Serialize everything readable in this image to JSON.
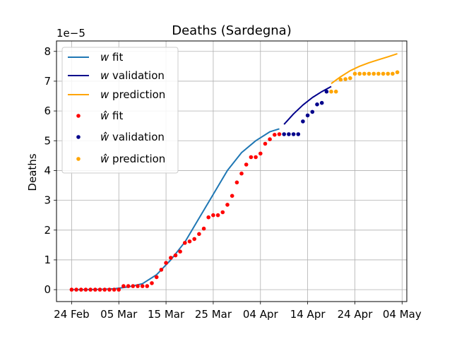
{
  "chart_data": {
    "type": "line",
    "title": "Deaths  (Sardegna)",
    "xlabel": "",
    "ylabel": "Deaths",
    "y_offset_label": "1e−5",
    "y_scale_factor": 1e-05,
    "x_tick_labels": [
      "24 Feb",
      "05 Mar",
      "15 Mar",
      "25 Mar",
      "04 Apr",
      "14 Apr",
      "24 Apr",
      "04 May"
    ],
    "x_tick_days": [
      0,
      10,
      20,
      30,
      40,
      50,
      60,
      70
    ],
    "y_tick_labels": [
      "0",
      "1",
      "2",
      "3",
      "4",
      "5",
      "6",
      "7",
      "8"
    ],
    "y_ticks": [
      0,
      1,
      2,
      3,
      4,
      5,
      6,
      7,
      8
    ],
    "xlim_days": [
      -3.2,
      71
    ],
    "ylim": [
      -0.4,
      8.35
    ],
    "grid": true,
    "legend_position": "upper-left",
    "colors": {
      "fit": "#1f77b4",
      "validation": "#00008b",
      "prediction": "#ffa500",
      "fit_points": "#ff0000"
    },
    "legend": {
      "w_fit": "w fit",
      "w_validation": "w validation",
      "w_prediction": "w prediction",
      "what_fit": "ŵ fit",
      "what_validation": "ŵ validation",
      "what_prediction": "ŵ prediction"
    },
    "series": [
      {
        "name": "w fit",
        "kind": "line",
        "x_days": [
          0,
          3,
          6,
          9,
          12,
          15,
          18,
          21,
          24,
          27,
          30,
          33,
          36,
          39,
          42,
          44
        ],
        "values": [
          0.0,
          0.0,
          0.01,
          0.03,
          0.09,
          0.2,
          0.5,
          1.0,
          1.6,
          2.4,
          3.2,
          4.0,
          4.6,
          5.0,
          5.3,
          5.4
        ]
      },
      {
        "name": "w validation",
        "kind": "line",
        "x_days": [
          45,
          47,
          49,
          51,
          53,
          55
        ],
        "values": [
          5.55,
          5.9,
          6.2,
          6.45,
          6.65,
          6.82
        ]
      },
      {
        "name": "w prediction",
        "kind": "line",
        "x_days": [
          55,
          57,
          59,
          61,
          63,
          65,
          67,
          69
        ],
        "values": [
          6.92,
          7.15,
          7.35,
          7.5,
          7.62,
          7.72,
          7.82,
          7.92
        ]
      },
      {
        "name": "ŵ fit",
        "kind": "scatter",
        "x_days": [
          0,
          1,
          2,
          3,
          4,
          5,
          6,
          7,
          8,
          9,
          10,
          11,
          12,
          13,
          14,
          15,
          16,
          17,
          18,
          19,
          20,
          21,
          22,
          23,
          24,
          25,
          26,
          27,
          28,
          29,
          30,
          31,
          32,
          33,
          34,
          35,
          36,
          37,
          38,
          39,
          40,
          41,
          42,
          43,
          44
        ],
        "values": [
          0,
          0,
          0,
          0,
          0,
          0,
          0,
          0,
          0,
          0,
          0,
          0.12,
          0.12,
          0.12,
          0.12,
          0.12,
          0.12,
          0.22,
          0.42,
          0.67,
          0.9,
          1.07,
          1.15,
          1.28,
          1.57,
          1.62,
          1.7,
          1.87,
          2.05,
          2.43,
          2.5,
          2.5,
          2.6,
          2.85,
          3.15,
          3.6,
          3.9,
          4.2,
          4.45,
          4.45,
          4.57,
          4.9,
          5.05,
          5.2,
          5.22
        ]
      },
      {
        "name": "ŵ validation",
        "kind": "scatter",
        "x_days": [
          45,
          46,
          47,
          48,
          49,
          50,
          51,
          52,
          53,
          54
        ],
        "values": [
          5.22,
          5.22,
          5.22,
          5.22,
          5.65,
          5.85,
          5.97,
          6.22,
          6.27,
          6.65
        ]
      },
      {
        "name": "ŵ prediction",
        "kind": "scatter",
        "x_days": [
          55,
          56,
          57,
          58,
          59,
          60,
          61,
          62,
          63,
          64,
          65,
          66,
          67,
          68,
          69
        ],
        "values": [
          6.65,
          6.65,
          7.05,
          7.07,
          7.1,
          7.25,
          7.25,
          7.25,
          7.25,
          7.25,
          7.25,
          7.25,
          7.25,
          7.25,
          7.3
        ]
      }
    ]
  }
}
